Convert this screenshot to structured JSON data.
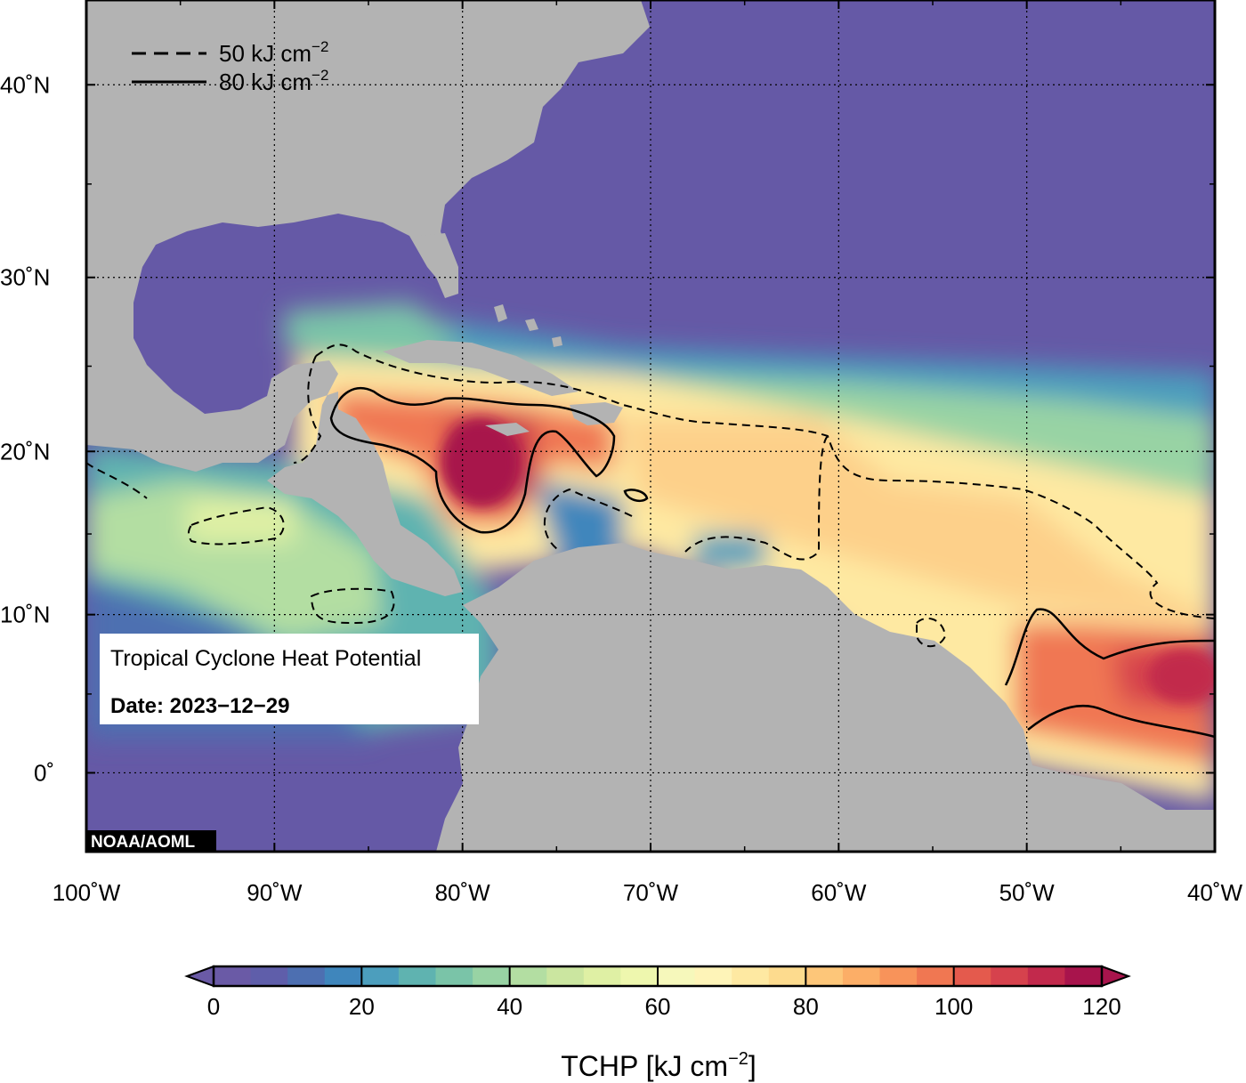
{
  "info_box": {
    "title": "Tropical Cyclone Heat Potential",
    "date_label": "Date: 2023−12−29"
  },
  "credit": "NOAA/AOML",
  "legend": {
    "items": [
      {
        "style": "dashed",
        "value": "50",
        "unit": "kJ cm",
        "exp": "−2"
      },
      {
        "style": "solid",
        "value": "80",
        "unit": "kJ cm",
        "exp": "−2"
      }
    ]
  },
  "map": {
    "lon_range": [
      -100,
      -40
    ],
    "lat_range": [
      -5,
      44
    ],
    "lat_ticks": [
      {
        "value": 40,
        "label": "40˚N"
      },
      {
        "value": 30,
        "label": "30˚N"
      },
      {
        "value": 20,
        "label": "20˚N"
      },
      {
        "value": 10,
        "label": "10˚N"
      },
      {
        "value": 0,
        "label": "0˚"
      }
    ],
    "lon_ticks": [
      {
        "value": -100,
        "label": "100˚W"
      },
      {
        "value": -90,
        "label": "90˚W"
      },
      {
        "value": -80,
        "label": "80˚W"
      },
      {
        "value": -70,
        "label": "70˚W"
      },
      {
        "value": -60,
        "label": "60˚W"
      },
      {
        "value": -50,
        "label": "50˚W"
      },
      {
        "value": -40,
        "label": "40˚W"
      }
    ],
    "grid": "dotted",
    "colors": {
      "ocean_low": "#6559a6",
      "land": "#b3b3b3"
    }
  },
  "colorbar": {
    "title": "TCHP [kJ cm",
    "title_exp": "−2",
    "title_close": "]",
    "min": 0,
    "max": 120,
    "ticks": [
      {
        "value": 0,
        "label": "0"
      },
      {
        "value": 20,
        "label": "20"
      },
      {
        "value": 40,
        "label": "40"
      },
      {
        "value": 60,
        "label": "60"
      },
      {
        "value": 80,
        "label": "80"
      },
      {
        "value": 100,
        "label": "100"
      },
      {
        "value": 120,
        "label": "120"
      }
    ],
    "colors": [
      "#6a5aa6",
      "#5f5eaa",
      "#4d6fb1",
      "#3f86bc",
      "#4c9ebd",
      "#5fb3b0",
      "#7ac4a8",
      "#98d3a4",
      "#b3dea2",
      "#cbe6a0",
      "#dff0a4",
      "#eef7ae",
      "#f6f8bb",
      "#fef4b8",
      "#fee9a2",
      "#fddb8e",
      "#fdc679",
      "#fcae67",
      "#f8935a",
      "#f07752",
      "#e45a4d",
      "#d6424d",
      "#c2294c",
      "#a8144c"
    ],
    "under_color": "#6a5aa6",
    "over_color": "#a8144c"
  }
}
